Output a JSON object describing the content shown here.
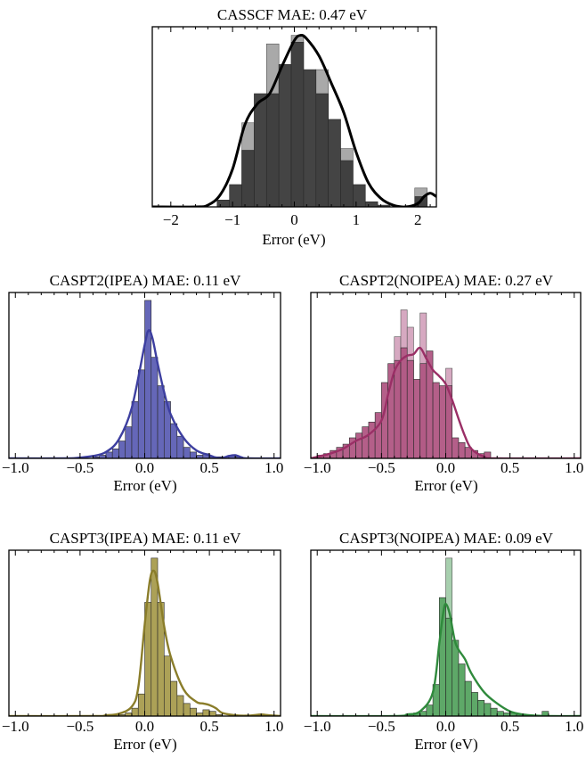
{
  "chart_data": [
    {
      "type": "histogram",
      "title": "CASSCF MAE: 0.47 eV",
      "xlabel": "Error (eV)",
      "xlim": [
        -2.3,
        2.3
      ],
      "xticks": [
        -2,
        -1,
        0,
        1,
        2
      ],
      "xtick_labels": [
        "−2",
        "−1",
        "0",
        "1",
        "2"
      ],
      "grid": false,
      "color": "#3a3a3a",
      "light_color": "#a9a9a9",
      "curve_color": "#000000",
      "bins": {
        "x_edges": [
          -1.25,
          -1.05,
          -0.85,
          -0.65,
          -0.45,
          -0.25,
          -0.05,
          0.15,
          0.35,
          0.55,
          0.75,
          0.95,
          1.15,
          1.35,
          1.55,
          1.75,
          1.95,
          2.15
        ],
        "dark_heights": [
          4,
          13,
          33,
          66,
          66,
          83,
          96,
          80,
          66,
          51,
          27,
          13,
          3,
          1,
          0,
          0,
          6
        ],
        "light_heights": [
          0,
          0,
          49,
          66,
          95,
          83,
          100,
          80,
          80,
          51,
          34,
          13,
          0,
          0,
          0,
          0,
          11
        ]
      },
      "kde": {
        "x": [
          -2.3,
          -1.6,
          -1.4,
          -1.2,
          -1.0,
          -0.8,
          -0.6,
          -0.4,
          -0.2,
          0.0,
          0.1,
          0.2,
          0.4,
          0.6,
          0.8,
          1.0,
          1.2,
          1.4,
          1.6,
          1.8,
          2.0,
          2.1,
          2.2,
          2.3
        ],
        "y": [
          0,
          0,
          1,
          7,
          22,
          48,
          60,
          66,
          82,
          97,
          100,
          98,
          88,
          72,
          55,
          32,
          14,
          5,
          1,
          0,
          2,
          6,
          8,
          6
        ]
      }
    },
    {
      "type": "histogram",
      "title": "CASPT2(IPEA) MAE: 0.11 eV",
      "xlabel": "Error (eV)",
      "xlim": [
        -1.05,
        1.05
      ],
      "xticks": [
        -1.0,
        -0.5,
        0.0,
        0.5,
        1.0
      ],
      "xtick_labels": [
        "−1.0",
        "−0.5",
        "0.0",
        "0.5",
        "1.0"
      ],
      "grid": false,
      "color": "#5d5fb4",
      "light_color": "#a9a9d8",
      "curve_color": "#3d3fa0",
      "bins": {
        "x_edges": [
          -0.4,
          -0.35,
          -0.3,
          -0.25,
          -0.2,
          -0.15,
          -0.1,
          -0.05,
          0.0,
          0.05,
          0.1,
          0.15,
          0.2,
          0.25,
          0.3,
          0.35,
          0.4,
          0.45,
          0.5,
          0.55,
          0.6,
          0.65,
          0.7,
          0.75
        ],
        "dark_heights": [
          1,
          2,
          4,
          6,
          11,
          20,
          36,
          56,
          100,
          64,
          46,
          36,
          22,
          14,
          7,
          4,
          2,
          3,
          1,
          1,
          1,
          2,
          1
        ],
        "light_heights": [
          0,
          0,
          0,
          0,
          0,
          0,
          0,
          0,
          0,
          0,
          0,
          0,
          0,
          0,
          0,
          0,
          0,
          0,
          0,
          0,
          0,
          0,
          0
        ]
      },
      "kde": {
        "x": [
          -1.05,
          -0.6,
          -0.5,
          -0.4,
          -0.3,
          -0.2,
          -0.1,
          0.0,
          0.03,
          0.06,
          0.1,
          0.15,
          0.2,
          0.3,
          0.4,
          0.5,
          0.55,
          0.6,
          0.65,
          0.7,
          0.75,
          0.8,
          1.05
        ],
        "y": [
          0,
          0,
          0.5,
          1.5,
          4,
          12,
          32,
          72,
          81,
          76,
          60,
          42,
          28,
          13,
          5,
          2,
          0.5,
          0.3,
          1.5,
          2,
          0.6,
          0,
          0
        ]
      }
    },
    {
      "type": "histogram",
      "title": "CASPT2(NOIPEA) MAE: 0.27 eV",
      "xlabel": "Error (eV)",
      "xlim": [
        -1.05,
        1.05
      ],
      "xticks": [
        -1.0,
        -0.5,
        0.0,
        0.5,
        1.0
      ],
      "xtick_labels": [
        "−1.0",
        "−0.5",
        "0.0",
        "0.5",
        "1.0"
      ],
      "grid": false,
      "color": "#b05683",
      "light_color": "#d6a9c1",
      "curve_color": "#9a2f66",
      "bins": {
        "x_edges": [
          -1.0,
          -0.95,
          -0.9,
          -0.85,
          -0.8,
          -0.75,
          -0.7,
          -0.65,
          -0.6,
          -0.55,
          -0.5,
          -0.45,
          -0.4,
          -0.35,
          -0.3,
          -0.25,
          -0.2,
          -0.15,
          -0.1,
          -0.05,
          0.0,
          0.05,
          0.1,
          0.15,
          0.2,
          0.25,
          0.3,
          0.35
        ],
        "dark_heights": [
          2,
          3,
          5,
          7,
          9,
          13,
          16,
          20,
          23,
          29,
          48,
          60,
          62,
          70,
          62,
          50,
          60,
          68,
          48,
          46,
          46,
          13,
          10,
          7,
          5,
          3,
          4
        ],
        "light_heights": [
          2,
          3,
          5,
          7,
          9,
          13,
          16,
          20,
          23,
          29,
          48,
          60,
          77,
          94,
          83,
          50,
          92,
          68,
          48,
          46,
          57,
          13,
          10,
          7,
          5,
          3,
          4
        ]
      },
      "kde": {
        "x": [
          -1.05,
          -1.0,
          -0.9,
          -0.8,
          -0.7,
          -0.6,
          -0.5,
          -0.45,
          -0.4,
          -0.35,
          -0.3,
          -0.25,
          -0.2,
          -0.15,
          -0.1,
          -0.05,
          0.0,
          0.05,
          0.1,
          0.15,
          0.2,
          0.3,
          0.4,
          1.05
        ],
        "y": [
          0,
          1,
          3,
          6,
          11,
          15,
          24,
          40,
          55,
          62,
          65,
          66,
          70,
          63,
          56,
          52,
          47,
          37,
          25,
          14,
          6,
          1,
          0,
          0
        ]
      }
    },
    {
      "type": "histogram",
      "title": "CASPT3(IPEA) MAE: 0.11 eV",
      "xlabel": "Error (eV)",
      "xlim": [
        -1.05,
        1.05
      ],
      "xticks": [
        -1.0,
        -0.5,
        0.0,
        0.5,
        1.0
      ],
      "xtick_labels": [
        "−1.0",
        "−0.5",
        "0.0",
        "0.5",
        "1.0"
      ],
      "grid": false,
      "color": "#a89c4e",
      "light_color": "#d2cb9c",
      "curve_color": "#8a7d2a",
      "bins": {
        "x_edges": [
          -0.25,
          -0.2,
          -0.15,
          -0.1,
          -0.05,
          0.0,
          0.05,
          0.1,
          0.15,
          0.2,
          0.25,
          0.3,
          0.35,
          0.4,
          0.45,
          0.5,
          0.55,
          0.6,
          0.65,
          0.7,
          0.75,
          0.8,
          0.85,
          0.9,
          0.95
        ],
        "dark_heights": [
          1,
          1,
          2,
          5,
          14,
          72,
          100,
          72,
          38,
          22,
          13,
          8,
          5,
          2,
          4,
          3,
          1,
          0,
          0,
          0,
          0,
          0,
          0,
          1
        ],
        "light_heights": [
          0,
          0,
          0,
          0,
          0,
          0,
          0,
          0,
          0,
          0,
          0,
          0,
          0,
          0,
          0,
          0,
          0,
          0,
          0,
          0,
          0,
          0,
          0,
          0
        ]
      },
      "kde": {
        "x": [
          -1.05,
          -0.4,
          -0.3,
          -0.2,
          -0.1,
          -0.05,
          0.0,
          0.04,
          0.07,
          0.1,
          0.15,
          0.2,
          0.3,
          0.4,
          0.45,
          0.5,
          0.55,
          0.6,
          0.7,
          0.8,
          0.9,
          0.95,
          1.05
        ],
        "y": [
          0,
          0,
          0.5,
          1.5,
          6,
          18,
          58,
          86,
          92,
          84,
          57,
          38,
          17,
          9,
          8,
          7,
          5,
          2,
          0.5,
          0.3,
          1,
          0.6,
          0
        ]
      }
    },
    {
      "type": "histogram",
      "title": "CASPT3(NOIPEA) MAE: 0.09 eV",
      "xlabel": "Error (eV)",
      "xlim": [
        -1.05,
        1.05
      ],
      "xticks": [
        -1.0,
        -0.5,
        0.0,
        0.5,
        1.0
      ],
      "xtick_labels": [
        "−1.0",
        "−0.5",
        "0.0",
        "0.5",
        "1.0"
      ],
      "grid": false,
      "color": "#55a360",
      "light_color": "#a7cfae",
      "curve_color": "#2f8a3c",
      "bins": {
        "x_edges": [
          -0.3,
          -0.25,
          -0.2,
          -0.15,
          -0.1,
          -0.05,
          0.0,
          0.05,
          0.1,
          0.15,
          0.2,
          0.25,
          0.3,
          0.35,
          0.4,
          0.45,
          0.5,
          0.55,
          0.6,
          0.65,
          0.7,
          0.75,
          0.8
        ],
        "dark_heights": [
          1,
          2,
          3,
          7,
          20,
          75,
          62,
          48,
          33,
          22,
          15,
          10,
          8,
          5,
          3,
          2,
          2,
          1,
          0,
          0,
          0,
          3
        ],
        "light_heights": [
          1,
          2,
          3,
          7,
          20,
          75,
          100,
          48,
          33,
          22,
          15,
          10,
          8,
          5,
          3,
          2,
          2,
          1,
          0,
          0,
          0,
          3
        ]
      },
      "kde": {
        "x": [
          -1.05,
          -0.4,
          -0.3,
          -0.2,
          -0.1,
          -0.05,
          -0.02,
          0.0,
          0.03,
          0.07,
          0.1,
          0.15,
          0.2,
          0.3,
          0.4,
          0.5,
          0.6,
          0.7,
          0.8,
          1.05
        ],
        "y": [
          0,
          0,
          1,
          3,
          15,
          46,
          65,
          71,
          65,
          48,
          42,
          36,
          27,
          15,
          8,
          3,
          1,
          0.3,
          0,
          0
        ]
      }
    }
  ]
}
